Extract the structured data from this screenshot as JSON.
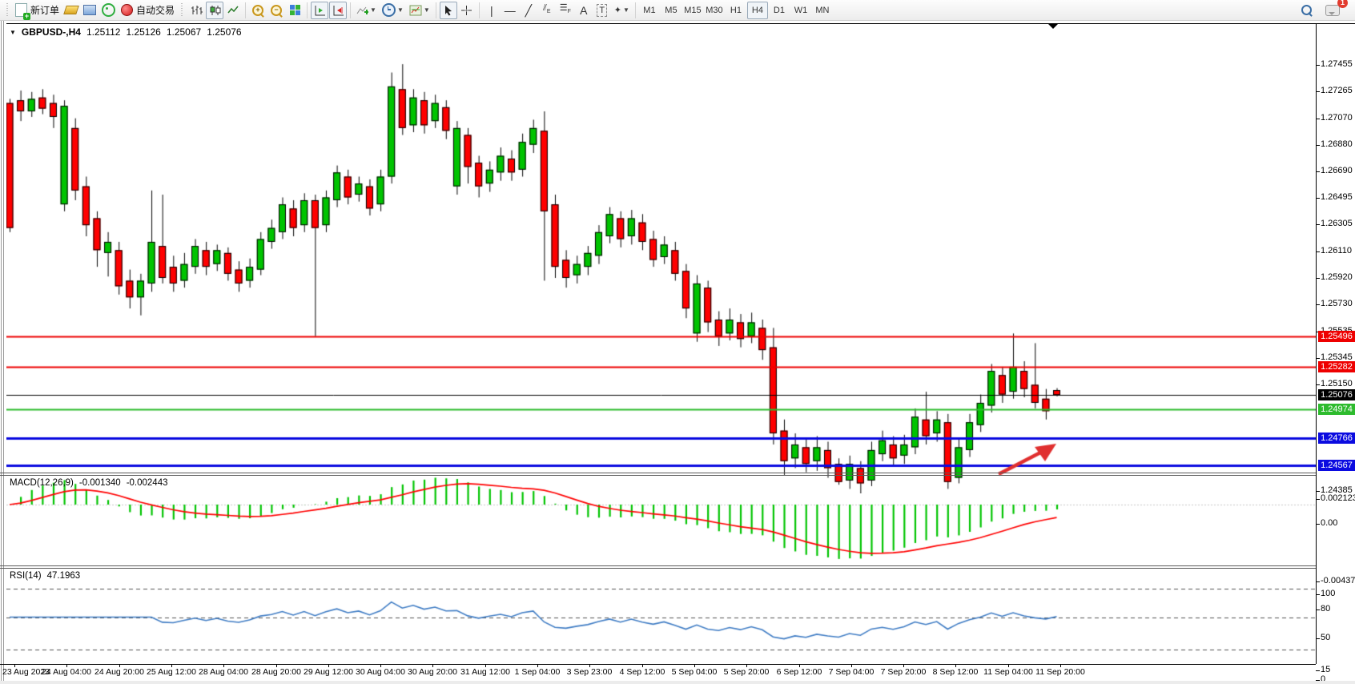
{
  "toolbar": {
    "new_order_label": "新订单",
    "autotrade_label": "自动交易",
    "timeframes": [
      "M1",
      "M5",
      "M15",
      "M30",
      "H1",
      "H4",
      "D1",
      "W1",
      "MN"
    ],
    "active_timeframe": "H4",
    "notification_count": "1",
    "icons": {
      "new_order": "doc-plus",
      "favorites": "gold-bar",
      "market_watch": "monitor",
      "signals": "signal-ring",
      "auto_trading": "red-dot",
      "bar_chart": "‖",
      "candle_chart": "candles",
      "line_chart": "zigzag",
      "zoom_in": "+",
      "zoom_out": "−",
      "tile_windows": "grid",
      "auto_scroll": "▸",
      "chart_shift": "◂",
      "indicators": "+",
      "periods": "clock",
      "templates": "chart",
      "cursor": "↖",
      "crosshair": "+",
      "vertical_line": "|",
      "horizontal_line": "—",
      "trendline": "╱",
      "equidistant_channel": "╱E",
      "fibonacci": "☰F",
      "text": "A",
      "text_label": "T",
      "arrows": "✦",
      "search": "magnifier",
      "chat": "bubble"
    }
  },
  "header": {
    "symbol_period": "GBPUSD-,H4",
    "open": "1.25112",
    "high": "1.25126",
    "low": "1.25067",
    "close": "1.25076"
  },
  "macd": {
    "label": "MACD(12,26,9)",
    "value_main": "-0.001340",
    "value_signal": "-0.002443",
    "axis_ticks": [
      "0.002123",
      "0.00",
      "-0.004378"
    ]
  },
  "rsi": {
    "label": "RSI(14)",
    "value": "47.1963",
    "axis_ticks": [
      "100",
      "80",
      "50",
      "15",
      "0"
    ],
    "levels": [
      80,
      50,
      15
    ]
  },
  "chart_data": {
    "type": "candlestick",
    "symbol": "GBPUSD-",
    "timeframe": "H4",
    "title": "GBPUSD-,H4",
    "price_axis_ticks": [
      "1.27455",
      "1.27265",
      "1.27070",
      "1.26880",
      "1.26690",
      "1.26495",
      "1.26305",
      "1.26110",
      "1.25920",
      "1.25730",
      "1.25535",
      "1.25345",
      "1.25150",
      "1.24385"
    ],
    "time_axis_labels": [
      "23 Aug 2023",
      "24 Aug 04:00",
      "24 Aug 20:00",
      "25 Aug 12:00",
      "28 Aug 04:00",
      "28 Aug 20:00",
      "29 Aug 12:00",
      "30 Aug 04:00",
      "30 Aug 20:00",
      "31 Aug 12:00",
      "1 Sep 04:00",
      "3 Sep 23:00",
      "4 Sep 12:00",
      "5 Sep 04:00",
      "5 Sep 20:00",
      "6 Sep 12:00",
      "7 Sep 04:00",
      "7 Sep 20:00",
      "8 Sep 12:00",
      "11 Sep 04:00",
      "11 Sep 20:00"
    ],
    "visible_price_range": [
      1.24356,
      1.27542
    ],
    "horizontal_levels": [
      {
        "label": "1.25496",
        "price": 1.25496,
        "color": "#ee0000",
        "line_width": 2,
        "role": "resistance"
      },
      {
        "label": "1.25282",
        "price": 1.25282,
        "color": "#ee0000",
        "line_width": 2,
        "role": "resistance"
      },
      {
        "label": "1.25076",
        "price": 1.25076,
        "color": "#000000",
        "line_width": 1,
        "role": "current-price"
      },
      {
        "label": "1.24974",
        "price": 1.24974,
        "color": "#2dbb2d",
        "line_width": 2,
        "role": "pivot"
      },
      {
        "label": "1.24766",
        "price": 1.24766,
        "color": "#0b0be0",
        "line_width": 3,
        "role": "support"
      },
      {
        "label": "1.24567",
        "price": 1.24567,
        "color": "#0b0be0",
        "line_width": 3,
        "role": "support"
      }
    ],
    "annotations": [
      {
        "type": "trend-arrow",
        "color": "#e03030",
        "direction": "up-right",
        "from_price": 1.2452,
        "to_price": 1.24735,
        "note": "bullish arrow between support lines"
      }
    ],
    "candles": [
      [
        1.2718,
        1.2721,
        1.2625,
        1.2628
      ],
      [
        1.272,
        1.2727,
        1.2705,
        1.2712
      ],
      [
        1.2712,
        1.2726,
        1.2708,
        1.2721
      ],
      [
        1.2722,
        1.2728,
        1.271,
        1.2714
      ],
      [
        1.2718,
        1.2724,
        1.27,
        1.2708
      ],
      [
        1.2645,
        1.272,
        1.264,
        1.2716
      ],
      [
        1.27,
        1.2707,
        1.2648,
        1.2655
      ],
      [
        1.2658,
        1.2665,
        1.2622,
        1.263
      ],
      [
        1.2635,
        1.264,
        1.26,
        1.2612
      ],
      [
        1.261,
        1.2625,
        1.2593,
        1.2618
      ],
      [
        1.2612,
        1.2618,
        1.258,
        1.2586
      ],
      [
        1.259,
        1.2598,
        1.257,
        1.2578
      ],
      [
        1.2578,
        1.2595,
        1.2565,
        1.259
      ],
      [
        1.2588,
        1.2655,
        1.2582,
        1.2618
      ],
      [
        1.2615,
        1.2652,
        1.2588,
        1.2592
      ],
      [
        1.26,
        1.2608,
        1.2582,
        1.2588
      ],
      [
        1.259,
        1.261,
        1.2585,
        1.2602
      ],
      [
        1.26,
        1.262,
        1.2595,
        1.2615
      ],
      [
        1.2612,
        1.2618,
        1.2594,
        1.26
      ],
      [
        1.2602,
        1.2616,
        1.2597,
        1.2612
      ],
      [
        1.261,
        1.2614,
        1.259,
        1.2595
      ],
      [
        1.2598,
        1.2604,
        1.2582,
        1.2588
      ],
      [
        1.259,
        1.2606,
        1.2585,
        1.26
      ],
      [
        1.2598,
        1.2625,
        1.2594,
        1.262
      ],
      [
        1.2618,
        1.2634,
        1.2613,
        1.2628
      ],
      [
        1.2625,
        1.265,
        1.262,
        1.2645
      ],
      [
        1.2642,
        1.2648,
        1.2622,
        1.2628
      ],
      [
        1.263,
        1.2653,
        1.2625,
        1.2648
      ],
      [
        1.2648,
        1.2652,
        1.255,
        1.2628
      ],
      [
        1.263,
        1.2655,
        1.2625,
        1.265
      ],
      [
        1.2648,
        1.2673,
        1.2643,
        1.2668
      ],
      [
        1.2665,
        1.267,
        1.2645,
        1.265
      ],
      [
        1.2652,
        1.2665,
        1.2647,
        1.266
      ],
      [
        1.2658,
        1.2663,
        1.2637,
        1.2642
      ],
      [
        1.2645,
        1.267,
        1.264,
        1.2665
      ],
      [
        1.2665,
        1.274,
        1.266,
        1.273
      ],
      [
        1.2728,
        1.2746,
        1.2695,
        1.27
      ],
      [
        1.2702,
        1.2728,
        1.2697,
        1.2722
      ],
      [
        1.272,
        1.2726,
        1.2696,
        1.2702
      ],
      [
        1.2705,
        1.2724,
        1.27,
        1.2718
      ],
      [
        1.2715,
        1.272,
        1.2692,
        1.2698
      ],
      [
        1.2658,
        1.2705,
        1.2652,
        1.27
      ],
      [
        1.2695,
        1.27,
        1.266,
        1.2672
      ],
      [
        1.2675,
        1.268,
        1.265,
        1.2658
      ],
      [
        1.266,
        1.2676,
        1.2654,
        1.267
      ],
      [
        1.2668,
        1.2686,
        1.2662,
        1.268
      ],
      [
        1.2678,
        1.2684,
        1.2662,
        1.2668
      ],
      [
        1.267,
        1.2696,
        1.2665,
        1.269
      ],
      [
        1.2688,
        1.2706,
        1.2682,
        1.27
      ],
      [
        1.2698,
        1.2712,
        1.259,
        1.264
      ],
      [
        1.2645,
        1.2652,
        1.2592,
        1.26
      ],
      [
        1.2605,
        1.2612,
        1.2585,
        1.2592
      ],
      [
        1.2594,
        1.2608,
        1.2588,
        1.2602
      ],
      [
        1.26,
        1.2615,
        1.2594,
        1.261
      ],
      [
        1.2608,
        1.263,
        1.2602,
        1.2625
      ],
      [
        1.2622,
        1.2643,
        1.2617,
        1.2638
      ],
      [
        1.2635,
        1.264,
        1.2614,
        1.262
      ],
      [
        1.2622,
        1.2641,
        1.2616,
        1.2635
      ],
      [
        1.2632,
        1.2638,
        1.2612,
        1.2618
      ],
      [
        1.262,
        1.2626,
        1.26,
        1.2605
      ],
      [
        1.2607,
        1.2622,
        1.2602,
        1.2616
      ],
      [
        1.2612,
        1.2618,
        1.259,
        1.2595
      ],
      [
        1.2597,
        1.2602,
        1.2563,
        1.257
      ],
      [
        1.2552,
        1.2594,
        1.2546,
        1.2588
      ],
      [
        1.2585,
        1.259,
        1.2553,
        1.256
      ],
      [
        1.2562,
        1.2568,
        1.2543,
        1.255
      ],
      [
        1.2552,
        1.257,
        1.2547,
        1.2562
      ],
      [
        1.256,
        1.2566,
        1.2542,
        1.2548
      ],
      [
        1.255,
        1.2567,
        1.2545,
        1.256
      ],
      [
        1.2556,
        1.2562,
        1.2533,
        1.254
      ],
      [
        1.2542,
        1.2556,
        1.2472,
        1.248
      ],
      [
        1.2482,
        1.249,
        1.245,
        1.246
      ],
      [
        1.2462,
        1.248,
        1.2455,
        1.2472
      ],
      [
        1.247,
        1.2476,
        1.2452,
        1.2458
      ],
      [
        1.246,
        1.2478,
        1.2453,
        1.247
      ],
      [
        1.2468,
        1.2474,
        1.2448,
        1.2455
      ],
      [
        1.2458,
        1.2462,
        1.2443,
        1.2445
      ],
      [
        1.2446,
        1.2464,
        1.244,
        1.2458
      ],
      [
        1.2455,
        1.246,
        1.2436,
        1.2444
      ],
      [
        1.2446,
        1.2474,
        1.2442,
        1.2468
      ],
      [
        1.2465,
        1.2482,
        1.246,
        1.2475
      ],
      [
        1.2472,
        1.2478,
        1.2456,
        1.2462
      ],
      [
        1.2464,
        1.2479,
        1.2458,
        1.2472
      ],
      [
        1.247,
        1.2498,
        1.2465,
        1.2492
      ],
      [
        1.249,
        1.251,
        1.2472,
        1.2478
      ],
      [
        1.248,
        1.2496,
        1.2474,
        1.249
      ],
      [
        1.2488,
        1.2494,
        1.244,
        1.2445
      ],
      [
        1.2448,
        1.2476,
        1.2444,
        1.247
      ],
      [
        1.2468,
        1.2494,
        1.2463,
        1.2488
      ],
      [
        1.2486,
        1.2508,
        1.2481,
        1.2502
      ],
      [
        1.25,
        1.253,
        1.2495,
        1.2525
      ],
      [
        1.2522,
        1.2528,
        1.2502,
        1.2508
      ],
      [
        1.251,
        1.2552,
        1.2505,
        1.2528
      ],
      [
        1.2525,
        1.2532,
        1.2506,
        1.2512
      ],
      [
        1.2515,
        1.2545,
        1.2498,
        1.2502
      ],
      [
        1.2505,
        1.2512,
        1.249,
        1.2496
      ],
      [
        1.25112,
        1.25126,
        1.25067,
        1.25076
      ]
    ],
    "indicators": [
      {
        "name": "MACD",
        "params": [
          12,
          26,
          9
        ],
        "style": "histogram+signal",
        "histogram_color": "#00c400",
        "signal_color": "#ff0000"
      },
      {
        "name": "RSI",
        "params": [
          14
        ],
        "style": "line",
        "line_color": "#3f7cc4"
      }
    ],
    "colors": {
      "bull": "#00c400",
      "bear": "#ff0000",
      "outline": "#000000",
      "background": "#ffffff"
    }
  }
}
